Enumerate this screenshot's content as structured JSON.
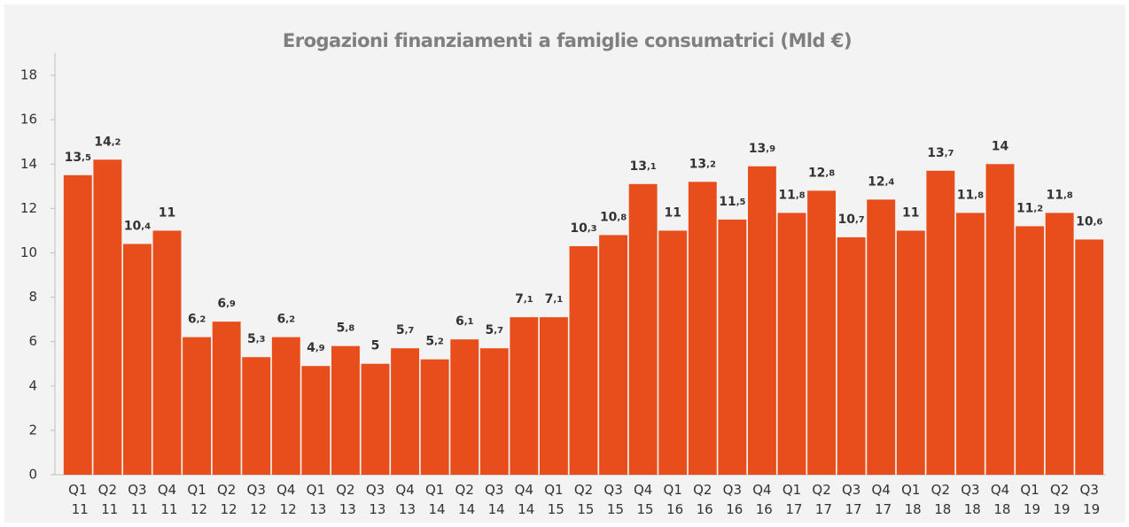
{
  "chart_data": {
    "type": "bar",
    "title": "Erogazioni finanziamenti a famiglie consumatrici (Mld €)",
    "categories": [
      "Q1 11",
      "Q2 11",
      "Q3 11",
      "Q4 11",
      "Q1 12",
      "Q2 12",
      "Q3 12",
      "Q4 12",
      "Q1 13",
      "Q2 13",
      "Q3 13",
      "Q4 13",
      "Q1 14",
      "Q2 14",
      "Q3 14",
      "Q4 14",
      "Q1 15",
      "Q2 15",
      "Q3 15",
      "Q4 15",
      "Q1 16",
      "Q2 16",
      "Q3 16",
      "Q4 16",
      "Q1 17",
      "Q2 17",
      "Q3 17",
      "Q4 17",
      "Q1 18",
      "Q2 18",
      "Q3 18",
      "Q4 18",
      "Q1 19",
      "Q2 19",
      "Q3 19"
    ],
    "values": [
      13.5,
      14.2,
      10.4,
      11,
      6.2,
      6.9,
      5.3,
      6.2,
      4.9,
      5.8,
      5,
      5.7,
      5.2,
      6.1,
      5.7,
      7.1,
      7.1,
      10.3,
      10.8,
      13.1,
      11,
      13.2,
      11.5,
      13.9,
      11.8,
      12.8,
      10.7,
      12.4,
      11,
      13.7,
      11.8,
      14,
      11.2,
      11.8,
      10.6
    ],
    "value_labels": [
      "13,5",
      "14,2",
      "10,4",
      "11",
      "6,2",
      "6,9",
      "5,3",
      "6,2",
      "4,9",
      "5,8",
      "5",
      "5,7",
      "5,2",
      "6,1",
      "5,7",
      "7,1",
      "7,1",
      "10,3",
      "10,8",
      "13,1",
      "11",
      "13,2",
      "11,5",
      "13,9",
      "11,8",
      "12,8",
      "10,7",
      "12,4",
      "11",
      "13,7",
      "11,8",
      "14",
      "11,2",
      "11,8",
      "10,6"
    ],
    "color": "#e84e1b",
    "ylim": [
      0,
      19
    ],
    "yticks": [
      0,
      2,
      4,
      6,
      8,
      10,
      12,
      14,
      16,
      18
    ],
    "grid": false
  }
}
